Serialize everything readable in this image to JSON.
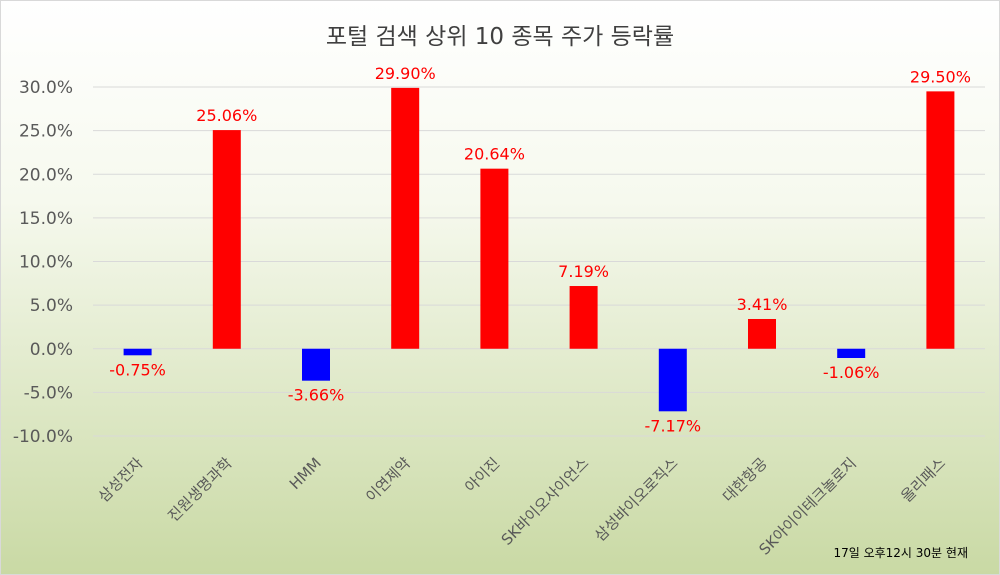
{
  "chart_data": {
    "type": "bar",
    "title": "포털 검색 상위 10 종목 주가 등락률",
    "categories": [
      "삼성전자",
      "진원생명과학",
      "HMM",
      "이연제약",
      "아이진",
      "SK바이오사이언스",
      "삼성바이오로직스",
      "대한항공",
      "SK아이이테크놀로지",
      "올리패스"
    ],
    "values": [
      -0.75,
      25.06,
      -3.66,
      29.9,
      20.64,
      7.19,
      -7.17,
      3.41,
      -1.06,
      29.5
    ],
    "value_labels": [
      "-0.75%",
      "25.06%",
      "-3.66%",
      "29.90%",
      "20.64%",
      "7.19%",
      "-7.17%",
      "3.41%",
      "-1.06%",
      "29.50%"
    ],
    "ylim": [
      -10,
      30
    ],
    "yticks": [
      30,
      25,
      20,
      15,
      10,
      5,
      0,
      -5,
      -10
    ],
    "ytick_labels": [
      "30.0%",
      "25.0%",
      "20.0%",
      "15.0%",
      "10.0%",
      "5.0%",
      "0.0%",
      "-5.0%",
      "-10.0%"
    ],
    "grid": true,
    "legend": false,
    "colors": {
      "positive": "#ff0000",
      "negative": "#0000ff",
      "label": "#ff0000",
      "axis_text": "#595959",
      "title_text": "#404040",
      "background_top": "#ffffff",
      "background_bottom": "#c9d9a4"
    },
    "footnote": "17일 오후12시 30분 현재"
  }
}
